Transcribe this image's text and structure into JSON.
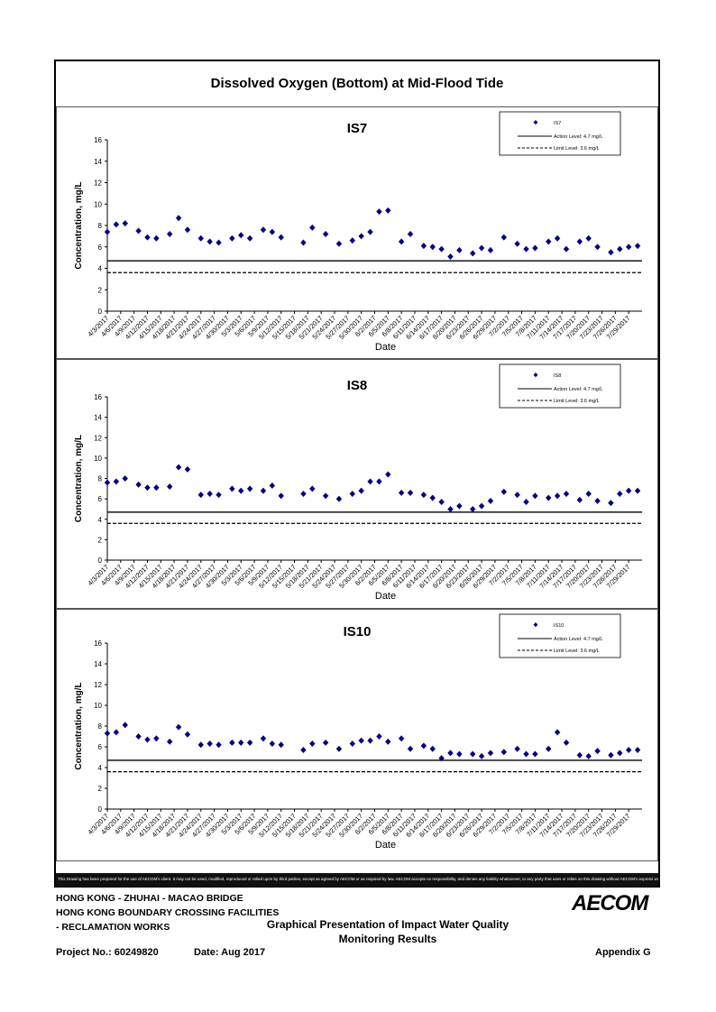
{
  "page": {
    "title": "Dissolved Oxygen (Bottom) at Mid-Flood Tide",
    "disclaimer": "This Drawing has been prepared for the use of AECOM's client. It may not be used, modified, reproduced or relied upon by third parties, except as agreed by AECOM or as required by law. AECOM accepts no responsibility, and denies any liability whatsoever, to any party that uses or relies on this drawing without AECOM's express written consent."
  },
  "footer": {
    "line1": "HONG KONG - ZHUHAI - MACAO BRIDGE",
    "line2": "HONG KONG BOUNDARY CROSSING FACILITIES",
    "line3": "- RECLAMATION WORKS",
    "caption1": "Graphical Presentation of Impact Water Quality",
    "caption2": "Monitoring Results",
    "project": "Project No.: 60249820",
    "date": "Date: Aug 2017",
    "appendix": "Appendix G",
    "logo": "AECOM"
  },
  "chart_data": [
    {
      "type": "scatter",
      "title": "IS7",
      "xlabel": "Date",
      "ylabel": "Concentration, mg/L",
      "ylim": [
        0,
        16
      ],
      "yticks": [
        0,
        2,
        4,
        6,
        8,
        10,
        12,
        14,
        16
      ],
      "xticks": [
        "4/3/2017",
        "4/6/2017",
        "4/9/2017",
        "4/12/2017",
        "4/15/2017",
        "4/18/2017",
        "4/21/2017",
        "4/24/2017",
        "4/27/2017",
        "4/30/2017",
        "5/3/2017",
        "5/6/2017",
        "5/9/2017",
        "5/12/2017",
        "5/15/2017",
        "5/18/2017",
        "5/21/2017",
        "5/24/2017",
        "5/27/2017",
        "5/30/2017",
        "6/2/2017",
        "6/5/2017",
        "6/8/2017",
        "6/11/2017",
        "6/14/2017",
        "6/17/2017",
        "6/20/2017",
        "6/23/2017",
        "6/26/2017",
        "6/29/2017",
        "7/2/2017",
        "7/5/2017",
        "7/8/2017",
        "7/11/2017",
        "7/14/2017",
        "7/17/2017",
        "7/20/2017",
        "7/23/2017",
        "7/26/2017",
        "7/29/2017"
      ],
      "legend_placement": "top-right",
      "series": [
        {
          "name": "IS7",
          "color": "#000080",
          "x": [
            "2017-04-03",
            "2017-04-05",
            "2017-04-07",
            "2017-04-10",
            "2017-04-12",
            "2017-04-14",
            "2017-04-17",
            "2017-04-19",
            "2017-04-21",
            "2017-04-24",
            "2017-04-26",
            "2017-04-28",
            "2017-05-01",
            "2017-05-03",
            "2017-05-05",
            "2017-05-08",
            "2017-05-10",
            "2017-05-12",
            "2017-05-17",
            "2017-05-19",
            "2017-05-22",
            "2017-05-25",
            "2017-05-28",
            "2017-05-30",
            "2017-06-01",
            "2017-06-03",
            "2017-06-05",
            "2017-06-08",
            "2017-06-10",
            "2017-06-13",
            "2017-06-15",
            "2017-06-17",
            "2017-06-19",
            "2017-06-21",
            "2017-06-24",
            "2017-06-26",
            "2017-06-28",
            "2017-07-01",
            "2017-07-04",
            "2017-07-06",
            "2017-07-08",
            "2017-07-11",
            "2017-07-13",
            "2017-07-15",
            "2017-07-18",
            "2017-07-20",
            "2017-07-22",
            "2017-07-25",
            "2017-07-27",
            "2017-07-29",
            "2017-07-31"
          ],
          "y": [
            7.4,
            8.1,
            8.2,
            7.5,
            6.9,
            6.8,
            7.2,
            8.7,
            7.6,
            6.8,
            6.5,
            6.4,
            6.8,
            7.1,
            6.8,
            7.6,
            7.4,
            6.9,
            6.4,
            7.8,
            7.2,
            6.3,
            6.6,
            7.0,
            7.4,
            9.3,
            9.4,
            6.5,
            7.2,
            6.1,
            6.0,
            5.8,
            5.1,
            5.7,
            5.4,
            5.9,
            5.7,
            6.9,
            6.3,
            5.8,
            5.9,
            6.5,
            6.8,
            5.8,
            6.5,
            6.8,
            6.0,
            5.5,
            5.8,
            6.0,
            6.1
          ]
        },
        {
          "name": "Action Level: 4.7 mg/L",
          "value": 4.7,
          "style": "solid"
        },
        {
          "name": "Limit Level: 3.6 mg/L",
          "value": 3.6,
          "style": "dashed"
        }
      ]
    },
    {
      "type": "scatter",
      "title": "IS8",
      "xlabel": "Date",
      "ylabel": "Concentration, mg/L",
      "ylim": [
        0,
        16
      ],
      "yticks": [
        0,
        2,
        4,
        6,
        8,
        10,
        12,
        14,
        16
      ],
      "xticks": [
        "4/3/2017",
        "4/6/2017",
        "4/9/2017",
        "4/12/2017",
        "4/15/2017",
        "4/18/2017",
        "4/21/2017",
        "4/24/2017",
        "4/27/2017",
        "4/30/2017",
        "5/3/2017",
        "5/6/2017",
        "5/9/2017",
        "5/12/2017",
        "5/15/2017",
        "5/18/2017",
        "5/21/2017",
        "5/24/2017",
        "5/27/2017",
        "5/30/2017",
        "6/2/2017",
        "6/5/2017",
        "6/8/2017",
        "6/11/2017",
        "6/14/2017",
        "6/17/2017",
        "6/20/2017",
        "6/23/2017",
        "6/26/2017",
        "6/29/2017",
        "7/2/2017",
        "7/5/2017",
        "7/8/2017",
        "7/11/2017",
        "7/14/2017",
        "7/17/2017",
        "7/20/2017",
        "7/23/2017",
        "7/26/2017",
        "7/29/2017"
      ],
      "legend_placement": "top-right",
      "series": [
        {
          "name": "IS8",
          "color": "#000080",
          "x": [
            "2017-04-03",
            "2017-04-05",
            "2017-04-07",
            "2017-04-10",
            "2017-04-12",
            "2017-04-14",
            "2017-04-17",
            "2017-04-19",
            "2017-04-21",
            "2017-04-24",
            "2017-04-26",
            "2017-04-28",
            "2017-05-01",
            "2017-05-03",
            "2017-05-05",
            "2017-05-08",
            "2017-05-10",
            "2017-05-12",
            "2017-05-17",
            "2017-05-19",
            "2017-05-22",
            "2017-05-25",
            "2017-05-28",
            "2017-05-30",
            "2017-06-01",
            "2017-06-03",
            "2017-06-05",
            "2017-06-08",
            "2017-06-10",
            "2017-06-13",
            "2017-06-15",
            "2017-06-17",
            "2017-06-19",
            "2017-06-21",
            "2017-06-24",
            "2017-06-26",
            "2017-06-28",
            "2017-07-01",
            "2017-07-04",
            "2017-07-06",
            "2017-07-08",
            "2017-07-11",
            "2017-07-13",
            "2017-07-15",
            "2017-07-18",
            "2017-07-20",
            "2017-07-22",
            "2017-07-25",
            "2017-07-27",
            "2017-07-29",
            "2017-07-31"
          ],
          "y": [
            7.6,
            7.7,
            8.0,
            7.4,
            7.1,
            7.1,
            7.2,
            9.1,
            8.9,
            6.4,
            6.5,
            6.4,
            7.0,
            6.8,
            7.0,
            6.8,
            7.3,
            6.3,
            6.5,
            7.0,
            6.3,
            6.0,
            6.5,
            6.8,
            7.7,
            7.7,
            8.4,
            6.6,
            6.6,
            6.4,
            6.1,
            5.7,
            5.0,
            5.3,
            5.0,
            5.3,
            5.8,
            6.7,
            6.4,
            5.7,
            6.3,
            6.1,
            6.3,
            6.5,
            5.9,
            6.5,
            5.8,
            5.6,
            6.5,
            6.8,
            6.8
          ]
        },
        {
          "name": "Action Level: 4.7 mg/L",
          "value": 4.7,
          "style": "solid"
        },
        {
          "name": "Limit Level: 3.6 mg/L",
          "value": 3.6,
          "style": "dashed"
        }
      ]
    },
    {
      "type": "scatter",
      "title": "IS10",
      "xlabel": "Date",
      "ylabel": "Concentration, mg/L",
      "ylim": [
        0,
        16
      ],
      "yticks": [
        0,
        2,
        4,
        6,
        8,
        10,
        12,
        14,
        16
      ],
      "xticks": [
        "4/3/2017",
        "4/6/2017",
        "4/9/2017",
        "4/12/2017",
        "4/15/2017",
        "4/18/2017",
        "4/21/2017",
        "4/24/2017",
        "4/27/2017",
        "4/30/2017",
        "5/3/2017",
        "5/6/2017",
        "5/9/2017",
        "5/12/2017",
        "5/15/2017",
        "5/18/2017",
        "5/21/2017",
        "5/24/2017",
        "5/27/2017",
        "5/30/2017",
        "6/2/2017",
        "6/5/2017",
        "6/8/2017",
        "6/11/2017",
        "6/14/2017",
        "6/17/2017",
        "6/20/2017",
        "6/23/2017",
        "6/26/2017",
        "6/29/2017",
        "7/2/2017",
        "7/5/2017",
        "7/8/2017",
        "7/11/2017",
        "7/14/2017",
        "7/17/2017",
        "7/20/2017",
        "7/23/2017",
        "7/26/2017",
        "7/29/2017"
      ],
      "legend_placement": "top-right",
      "series": [
        {
          "name": "IS10",
          "color": "#000080",
          "x": [
            "2017-04-03",
            "2017-04-05",
            "2017-04-07",
            "2017-04-10",
            "2017-04-12",
            "2017-04-14",
            "2017-04-17",
            "2017-04-19",
            "2017-04-21",
            "2017-04-24",
            "2017-04-26",
            "2017-04-28",
            "2017-05-01",
            "2017-05-03",
            "2017-05-05",
            "2017-05-08",
            "2017-05-10",
            "2017-05-12",
            "2017-05-17",
            "2017-05-19",
            "2017-05-22",
            "2017-05-25",
            "2017-05-28",
            "2017-05-30",
            "2017-06-01",
            "2017-06-03",
            "2017-06-05",
            "2017-06-08",
            "2017-06-10",
            "2017-06-13",
            "2017-06-15",
            "2017-06-17",
            "2017-06-19",
            "2017-06-21",
            "2017-06-24",
            "2017-06-26",
            "2017-06-28",
            "2017-07-01",
            "2017-07-04",
            "2017-07-06",
            "2017-07-08",
            "2017-07-11",
            "2017-07-13",
            "2017-07-15",
            "2017-07-18",
            "2017-07-20",
            "2017-07-22",
            "2017-07-25",
            "2017-07-27",
            "2017-07-29",
            "2017-07-31"
          ],
          "y": [
            7.3,
            7.4,
            8.1,
            7.0,
            6.7,
            6.8,
            6.5,
            7.9,
            7.2,
            6.2,
            6.3,
            6.2,
            6.4,
            6.4,
            6.4,
            6.8,
            6.3,
            6.2,
            5.7,
            6.3,
            6.4,
            5.8,
            6.3,
            6.6,
            6.6,
            7.0,
            6.5,
            6.8,
            5.8,
            6.1,
            5.8,
            4.9,
            5.4,
            5.3,
            5.3,
            5.1,
            5.4,
            5.5,
            5.8,
            5.3,
            5.3,
            5.8,
            7.4,
            6.4,
            5.2,
            5.1,
            5.6,
            5.2,
            5.4,
            5.7,
            5.7
          ]
        },
        {
          "name": "Action Level: 4.7 mg/L",
          "value": 4.7,
          "style": "solid"
        },
        {
          "name": "Limit Level: 3.6 mg/L",
          "value": 3.6,
          "style": "dashed"
        }
      ]
    }
  ]
}
